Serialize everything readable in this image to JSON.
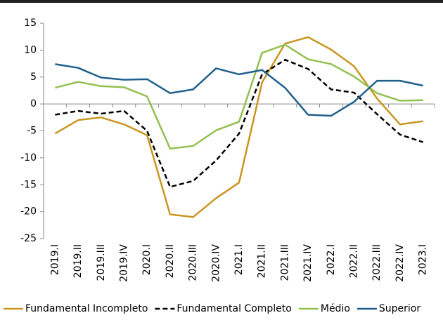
{
  "chart_data": {
    "type": "line",
    "categories": [
      "2019.I",
      "2019.II",
      "2019.III",
      "2019.IV",
      "2020.I",
      "2020.II",
      "2020.III",
      "2020.IV",
      "2021.I",
      "2021.II",
      "2021.III",
      "2021.IV",
      "2022.I",
      "2022.II",
      "2022.III",
      "2022.IV",
      "2023.I"
    ],
    "series": [
      {
        "name": "Fundamental Incompleto",
        "color": "#c9951f",
        "dashed": false,
        "values": [
          -5.5,
          -3,
          -2.5,
          -3.8,
          -5.8,
          -20.5,
          -21,
          -17.5,
          -14.6,
          4,
          11.2,
          12.4,
          10.1,
          7,
          1,
          -3.8,
          -3.2
        ]
      },
      {
        "name": "Fundamental Completo",
        "color": "#000000",
        "dashed": true,
        "values": [
          -2,
          -1.3,
          -1.8,
          -1.3,
          -5,
          -15.4,
          -14.3,
          -10.5,
          -5.5,
          5.5,
          8.2,
          6.5,
          2.7,
          2.1,
          -1.9,
          -5.7,
          -7.1
        ]
      },
      {
        "name": "Médio",
        "color": "#92c050",
        "dashed": false,
        "values": [
          3,
          4.1,
          3.3,
          3.1,
          1.4,
          -8.3,
          -7.8,
          -4.9,
          -3.3,
          9.5,
          11,
          8.3,
          7.4,
          5.1,
          2,
          0.6,
          0.7
        ]
      },
      {
        "name": "Superior",
        "color": "#1f5f8b",
        "dashed": false,
        "values": [
          7.4,
          6.7,
          4.9,
          4.5,
          4.6,
          2,
          2.7,
          6.6,
          5.5,
          6.3,
          3,
          -2,
          -2.2,
          0.4,
          4.3,
          4.3,
          3.4
        ]
      }
    ],
    "ylim": [
      -25,
      15
    ],
    "yticks": [
      -25,
      -20,
      -15,
      -10,
      -5,
      0,
      5,
      10,
      15
    ],
    "legend": "bottom"
  }
}
